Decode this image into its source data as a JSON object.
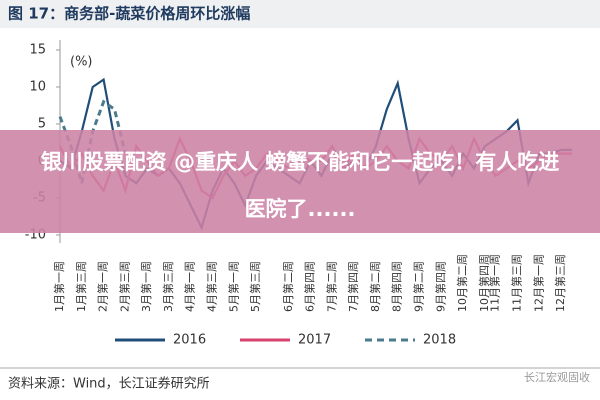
{
  "chart_data": {
    "type": "line",
    "title": "图 17：商务部-蔬菜价格周环比涨幅",
    "y_label": "(%)",
    "source": "资料来源：Wind，长江证券研究所",
    "watermark": "长江宏观固收",
    "banner": [
      "银川股票配资 @重庆人 螃蟹不能和它一起吃！有人吃进",
      "医院了......"
    ],
    "categories": [
      "1月第一周",
      null,
      "1月第三周",
      null,
      "2月第一周",
      null,
      "2月第三周",
      null,
      "3月第一周",
      null,
      "3月第三周",
      null,
      "4月第一周",
      null,
      "4月第三周",
      null,
      "5月第一周",
      null,
      "5月第三周",
      null,
      null,
      "6月第二周",
      null,
      "6月第四周",
      null,
      "7月第二周",
      null,
      "7月第四周",
      null,
      "8月第二周",
      null,
      "8月第四周",
      null,
      "9月第二周",
      null,
      "9月第四周",
      null,
      "10月第二周",
      null,
      "10月第四周",
      "11月第一周",
      null,
      "11月第三周",
      null,
      "12月第一周",
      null,
      "12月第三周",
      null
    ],
    "series": [
      {
        "name": "2016",
        "color": "#1f4e79",
        "dashed": false,
        "values": [
          0,
          -1,
          4,
          10,
          11,
          3,
          -2,
          -3,
          -1,
          -2,
          -1,
          -3,
          -6,
          -9,
          -4,
          -1,
          -3,
          -6,
          -2,
          0,
          -1,
          -2,
          -3,
          0,
          -2,
          1,
          -1,
          0,
          -1,
          2,
          7,
          10.5,
          3,
          -3,
          -1,
          0,
          -2,
          1,
          -1,
          2,
          3,
          4,
          5.5,
          -3,
          1,
          1,
          1.5,
          1.5
        ]
      },
      {
        "name": "2017",
        "color": "#d9416e",
        "dashed": false,
        "values": [
          2,
          -1,
          1,
          -2,
          -4,
          0,
          -4,
          2,
          0,
          -2,
          -1,
          3,
          0,
          -4,
          -5,
          -2,
          0,
          -2,
          -1,
          1,
          0,
          -1,
          1,
          0,
          0,
          2,
          -1,
          1,
          -1,
          0,
          2,
          0,
          -1,
          3,
          1,
          0,
          2,
          -1,
          3,
          0,
          -2,
          -1,
          0,
          -1,
          0,
          1,
          1,
          1
        ]
      },
      {
        "name": "2018",
        "color": "#4a7b8c",
        "dashed": true,
        "values": [
          6,
          2,
          -3,
          4,
          8,
          7,
          1,
          null,
          null,
          null,
          null,
          null,
          null,
          null,
          null,
          null,
          null,
          null,
          null,
          null,
          null,
          null,
          null,
          null,
          null,
          null,
          null,
          null,
          null,
          null,
          null,
          null,
          null,
          null,
          null,
          null,
          null,
          null,
          null,
          null,
          null,
          null,
          null,
          null,
          null,
          null,
          null,
          null
        ]
      }
    ],
    "ylim": [
      -10,
      15
    ],
    "yticks": [
      15,
      10,
      5,
      0,
      -5,
      -10
    ]
  }
}
